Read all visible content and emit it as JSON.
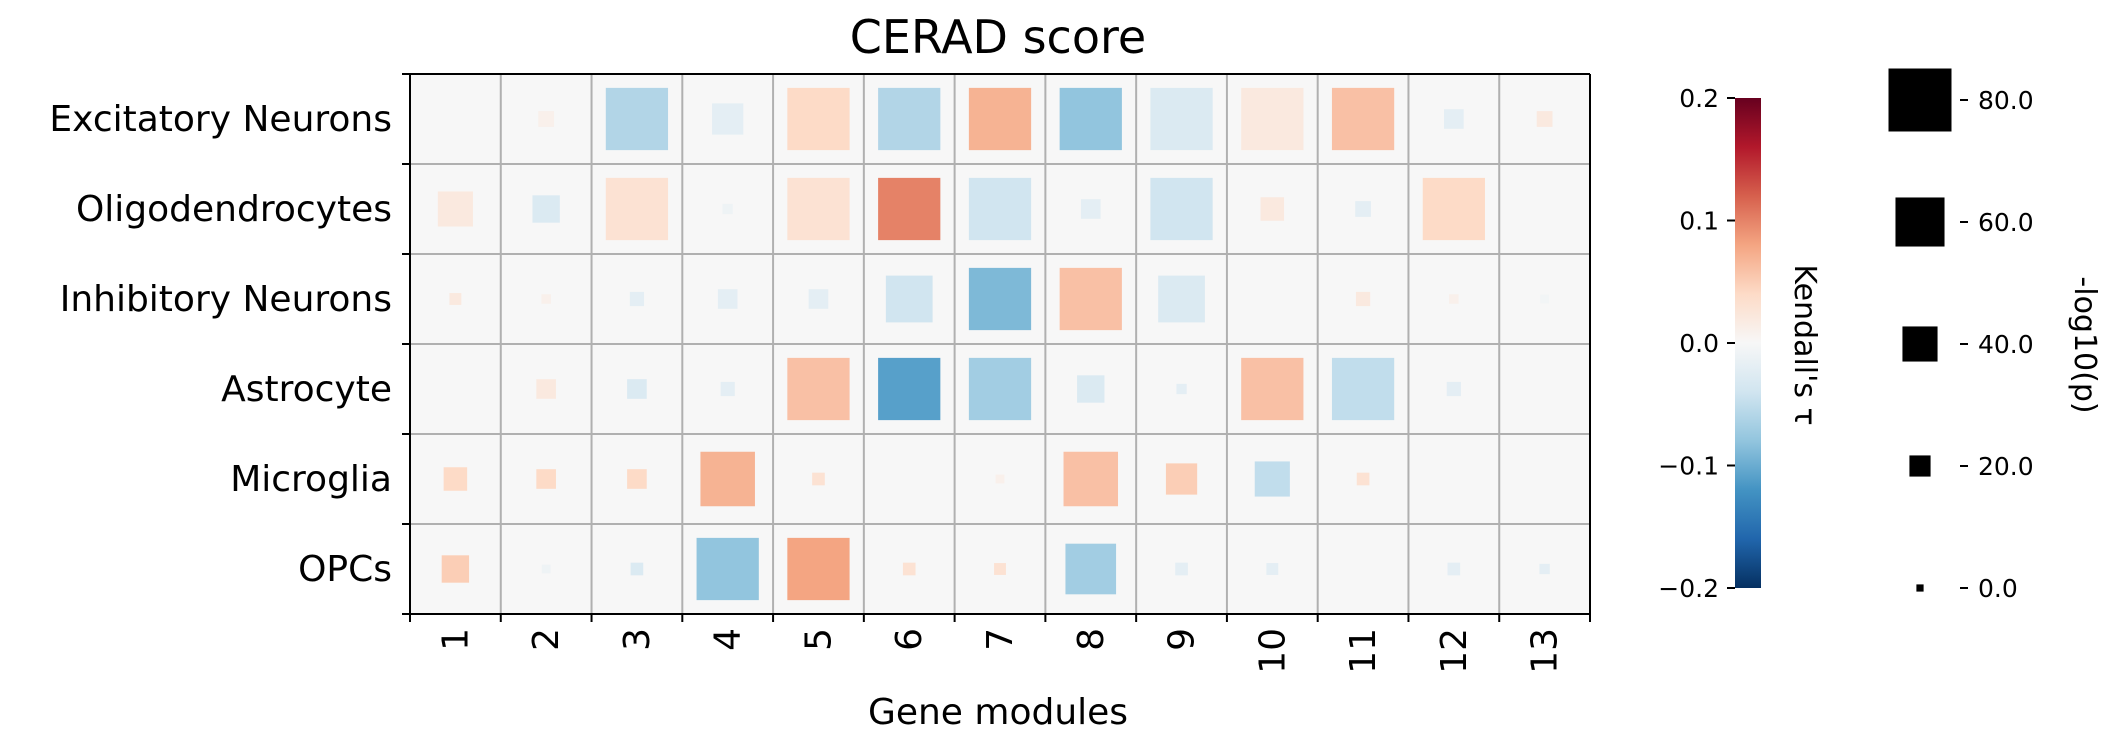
{
  "chart_data": {
    "type": "heatmap",
    "title": "CERAD score",
    "xlabel": "Gene modules",
    "ylabel": "",
    "x_categories": [
      "1",
      "2",
      "3",
      "4",
      "5",
      "6",
      "7",
      "8",
      "9",
      "10",
      "11",
      "12",
      "13"
    ],
    "y_categories": [
      "Excitatory Neurons",
      "Oligodendrocytes",
      "Inhibitory Neurons",
      "Astrocyte",
      "Microglia",
      "OPCs"
    ],
    "grid": true,
    "color_metric": "Kendall's τ",
    "size_metric": "-log10(p)",
    "colorbar": {
      "label": "Kendall's τ",
      "range": [
        -0.2,
        0.2
      ],
      "ticks": [
        0.2,
        0.1,
        0.0,
        -0.1,
        -0.2
      ],
      "tick_labels": [
        "0.2",
        "0.1",
        "0.0",
        "−0.1",
        "−0.2"
      ],
      "colormap": "RdBu_r",
      "stops": [
        "#053061",
        "#2166ac",
        "#4393c3",
        "#92c5de",
        "#d1e5f0",
        "#f7f7f7",
        "#fddbc7",
        "#f4a582",
        "#d6604d",
        "#b2182b",
        "#67001f"
      ]
    },
    "size_legend": {
      "label": "-log10(p)",
      "values": [
        80.0,
        60.0,
        40.0,
        20.0,
        0.0
      ],
      "tick_labels": [
        "80.0",
        "60.0",
        "40.0",
        "20.0",
        "0.0"
      ]
    },
    "tau": [
      [
        0.0,
        0.01,
        -0.06,
        -0.02,
        0.04,
        -0.06,
        0.07,
        -0.08,
        -0.03,
        0.02,
        0.06,
        -0.02,
        0.02
      ],
      [
        0.02,
        -0.03,
        0.03,
        -0.01,
        0.03,
        0.1,
        -0.04,
        -0.02,
        -0.04,
        0.02,
        -0.02,
        0.04,
        0.0
      ],
      [
        0.02,
        0.01,
        -0.02,
        -0.02,
        -0.02,
        -0.04,
        -0.09,
        0.06,
        -0.03,
        0.0,
        0.02,
        0.01,
        -0.005
      ],
      [
        0.0,
        0.02,
        -0.03,
        -0.02,
        0.06,
        -0.11,
        -0.07,
        -0.03,
        -0.02,
        0.06,
        -0.05,
        -0.02,
        0.0
      ],
      [
        0.04,
        0.04,
        0.04,
        0.07,
        0.03,
        0.0,
        0.01,
        0.06,
        0.05,
        -0.05,
        0.03,
        0.0,
        0.0
      ],
      [
        0.05,
        -0.01,
        -0.03,
        -0.08,
        0.08,
        0.03,
        0.03,
        -0.07,
        -0.02,
        -0.02,
        0.0,
        -0.02,
        -0.02
      ]
    ],
    "neglog10p": [
      [
        0,
        10,
        70,
        30,
        70,
        70,
        70,
        70,
        70,
        70,
        70,
        15,
        10
      ],
      [
        35,
        25,
        70,
        3,
        70,
        70,
        70,
        15,
        70,
        20,
        10,
        70,
        0.5
      ],
      [
        5,
        2,
        8,
        15,
        15,
        50,
        70,
        70,
        50,
        0,
        8,
        2,
        1
      ],
      [
        0,
        15,
        15,
        8,
        70,
        70,
        70,
        25,
        3,
        70,
        70,
        8,
        0
      ],
      [
        20,
        15,
        15,
        60,
        6,
        0,
        1,
        60,
        30,
        35,
        6,
        0,
        0.5
      ],
      [
        25,
        1,
        6,
        70,
        70,
        6,
        5,
        55,
        6,
        5,
        0.5,
        6,
        3
      ]
    ]
  }
}
